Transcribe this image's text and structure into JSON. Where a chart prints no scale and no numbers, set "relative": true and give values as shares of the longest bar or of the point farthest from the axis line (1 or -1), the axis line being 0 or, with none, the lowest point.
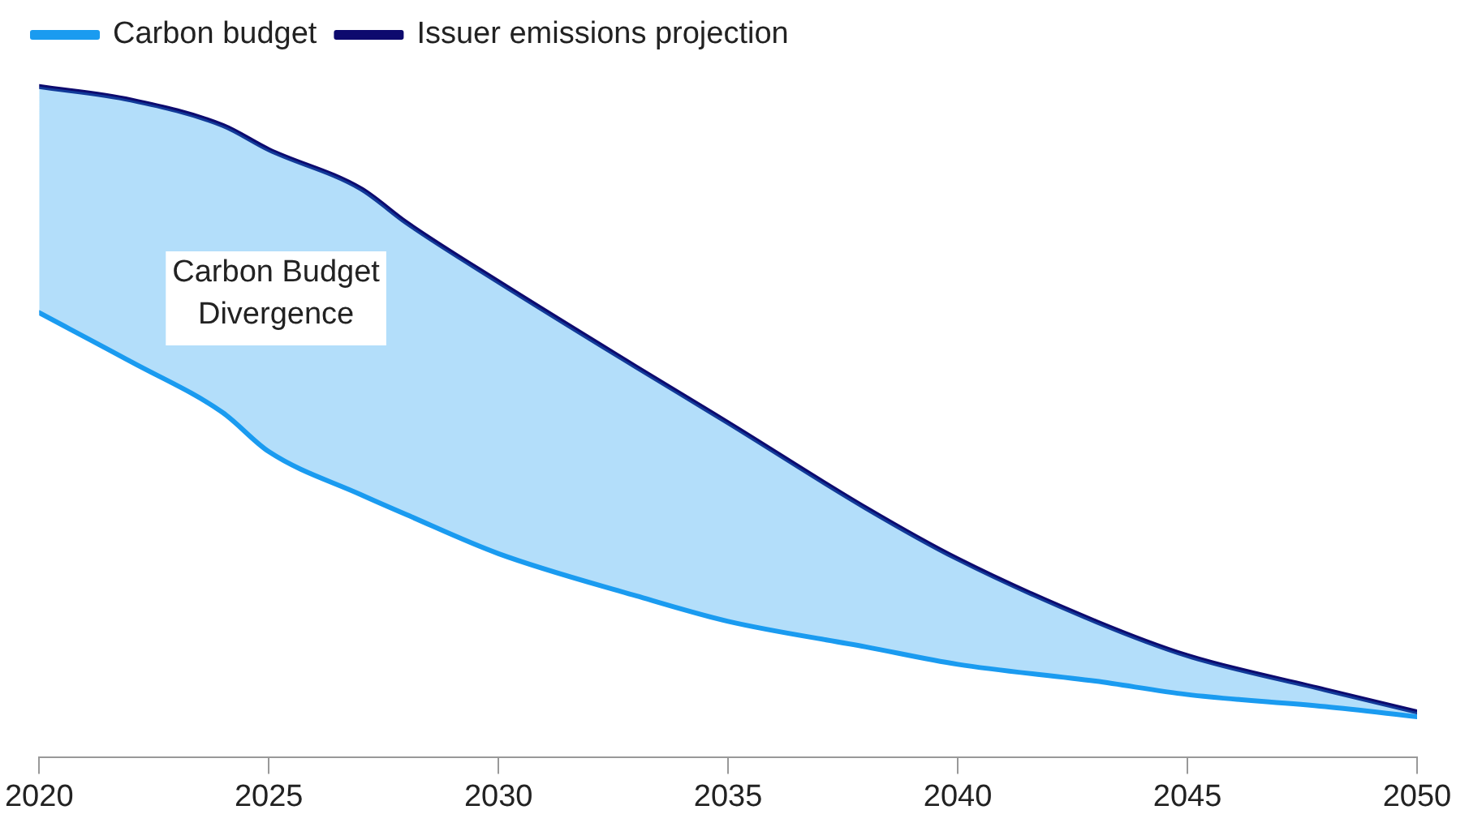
{
  "chart_data": {
    "type": "line",
    "relative": true,
    "xlim": [
      2020,
      2050
    ],
    "xticks": [
      2020,
      2025,
      2030,
      2035,
      2040,
      2045,
      2050
    ],
    "grid": false,
    "legend": "top left",
    "marker": "none",
    "annotations": [
      "Carbon Budget Divergence"
    ],
    "x": [
      2020,
      2022,
      2024,
      2025,
      2027,
      2028,
      2030,
      2033,
      2035,
      2038,
      2040,
      2043,
      2045,
      2048,
      2050
    ],
    "series": [
      {
        "name": "Carbon budget",
        "color": "#1a9bf0",
        "values": [
          0.663,
          0.59,
          0.514,
          0.456,
          0.392,
          0.362,
          0.304,
          0.241,
          0.203,
          0.165,
          0.139,
          0.114,
          0.094,
          0.076,
          0.061
        ]
      },
      {
        "name": "Issuer emissions projection",
        "color": "#0d0a6e",
        "values": [
          1.0,
          0.98,
          0.942,
          0.906,
          0.848,
          0.797,
          0.709,
          0.582,
          0.499,
          0.372,
          0.296,
          0.203,
          0.152,
          0.101,
          0.068
        ],
        "lower": [
          0.663,
          0.59,
          0.514,
          0.456,
          0.392,
          0.362,
          0.304,
          0.241,
          0.203,
          0.165,
          0.139,
          0.114,
          0.094,
          0.076,
          0.061
        ],
        "upper": [
          1.0,
          0.98,
          0.942,
          0.906,
          0.848,
          0.797,
          0.709,
          0.582,
          0.499,
          0.372,
          0.296,
          0.203,
          0.152,
          0.101,
          0.068
        ]
      }
    ]
  }
}
